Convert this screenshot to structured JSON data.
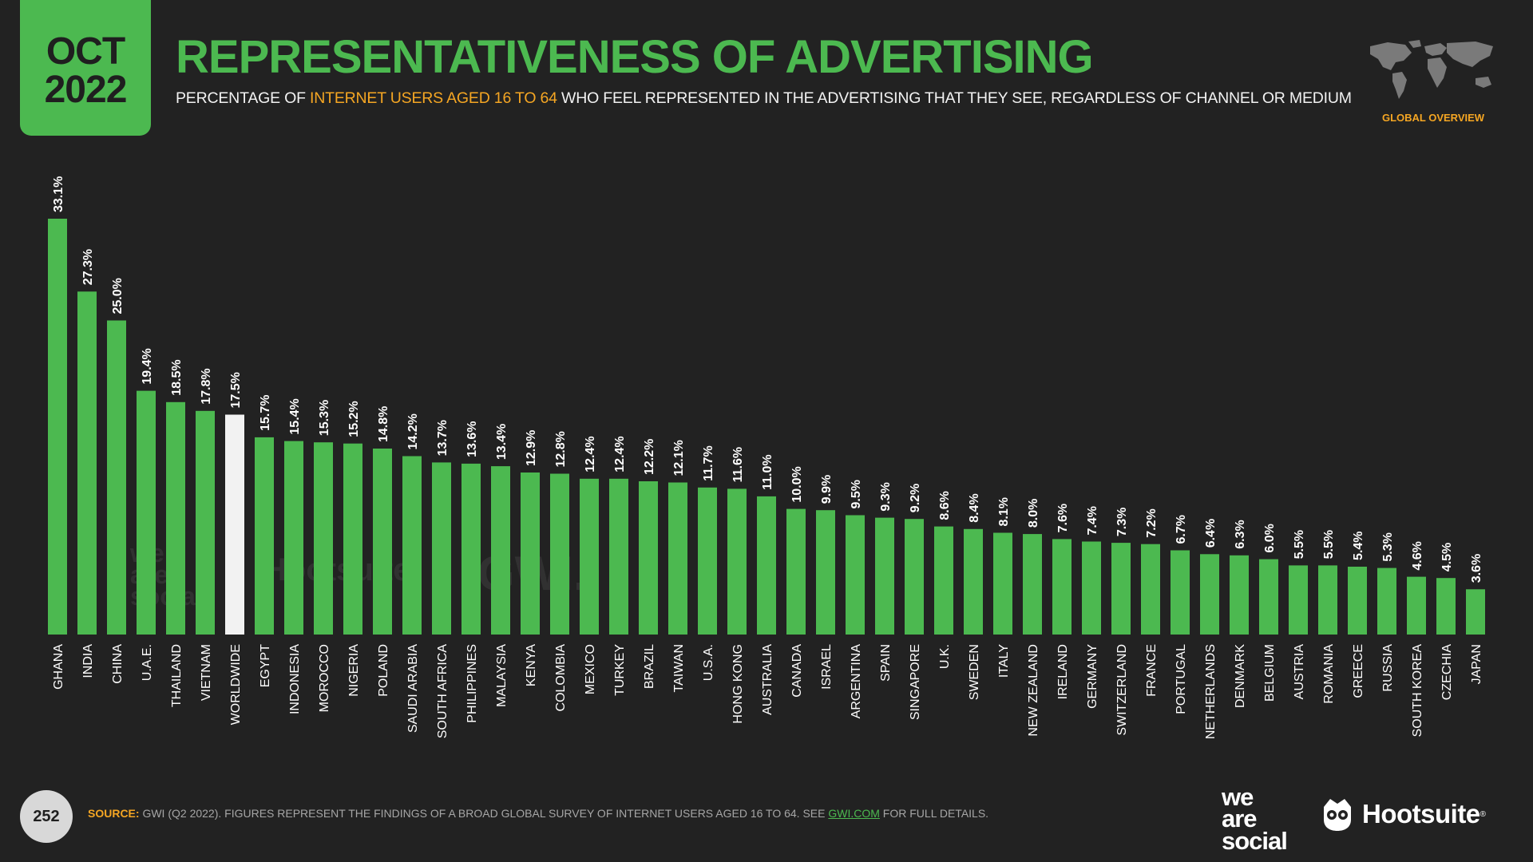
{
  "header": {
    "date_month": "OCT",
    "date_year": "2022",
    "title": "REPRESENTATIVENESS OF ADVERTISING",
    "subtitle_pre": "PERCENTAGE OF ",
    "subtitle_highlight": "INTERNET USERS AGED 16 TO 64",
    "subtitle_post": " WHO FEEL REPRESENTED IN THE ADVERTISING THAT THEY SEE, REGARDLESS OF CHANNEL OR MEDIUM",
    "region_label": "GLOBAL OVERVIEW"
  },
  "colors": {
    "accent": "#4cb950",
    "highlight": "#f5a623",
    "background": "#222222",
    "bar": "#4cb950",
    "bar_highlight": "#f2f2f2"
  },
  "chart_data": {
    "type": "bar",
    "categories": [
      "GHANA",
      "INDIA",
      "CHINA",
      "U.A.E.",
      "THAILAND",
      "VIETNAM",
      "WORLDWIDE",
      "EGYPT",
      "INDONESIA",
      "MOROCCO",
      "NIGERIA",
      "POLAND",
      "SAUDI ARABIA",
      "SOUTH AFRICA",
      "PHILIPPINES",
      "MALAYSIA",
      "KENYA",
      "COLOMBIA",
      "MEXICO",
      "TURKEY",
      "BRAZIL",
      "TAIWAN",
      "U.S.A.",
      "HONG KONG",
      "AUSTRALIA",
      "CANADA",
      "ISRAEL",
      "ARGENTINA",
      "SPAIN",
      "SINGAPORE",
      "U.K.",
      "SWEDEN",
      "ITALY",
      "NEW ZEALAND",
      "IRELAND",
      "GERMANY",
      "SWITZERLAND",
      "FRANCE",
      "PORTUGAL",
      "NETHERLANDS",
      "DENMARK",
      "BELGIUM",
      "AUSTRIA",
      "ROMANIA",
      "GREECE",
      "RUSSIA",
      "SOUTH KOREA",
      "CZECHIA",
      "JAPAN"
    ],
    "values": [
      33.1,
      27.3,
      25.0,
      19.4,
      18.5,
      17.8,
      17.5,
      15.7,
      15.4,
      15.3,
      15.2,
      14.8,
      14.2,
      13.7,
      13.6,
      13.4,
      12.9,
      12.8,
      12.4,
      12.4,
      12.2,
      12.1,
      11.7,
      11.6,
      11.0,
      10.0,
      9.9,
      9.5,
      9.3,
      9.2,
      8.6,
      8.4,
      8.1,
      8.0,
      7.6,
      7.4,
      7.3,
      7.2,
      6.7,
      6.4,
      6.3,
      6.0,
      5.5,
      5.5,
      5.4,
      5.3,
      4.6,
      4.5,
      3.6
    ],
    "value_labels": [
      "33.1%",
      "27.3%",
      "25.0%",
      "19.4%",
      "18.5%",
      "17.8%",
      "17.5%",
      "15.7%",
      "15.4%",
      "15.3%",
      "15.2%",
      "14.8%",
      "14.2%",
      "13.7%",
      "13.6%",
      "13.4%",
      "12.9%",
      "12.8%",
      "12.4%",
      "12.4%",
      "12.2%",
      "12.1%",
      "11.7%",
      "11.6%",
      "11.0%",
      "10.0%",
      "9.9%",
      "9.5%",
      "9.3%",
      "9.2%",
      "8.6%",
      "8.4%",
      "8.1%",
      "8.0%",
      "7.6%",
      "7.4%",
      "7.3%",
      "7.2%",
      "6.7%",
      "6.4%",
      "6.3%",
      "6.0%",
      "5.5%",
      "5.5%",
      "5.4%",
      "5.3%",
      "4.6%",
      "4.5%",
      "3.6%"
    ],
    "highlight_category": "WORLDWIDE",
    "ylim": [
      0,
      33.1
    ],
    "grid": false,
    "xlabel": "",
    "ylabel": ""
  },
  "watermarks": {
    "was_line1": "we",
    "was_line2": "are",
    "was_line3": "social",
    "hootsuite": "Hootsuite",
    "gwi": "GWI."
  },
  "footer": {
    "page_number": "252",
    "source_label": "SOURCE:",
    "source_text": " GWI (Q2 2022). FIGURES REPRESENT THE FINDINGS OF A BROAD GLOBAL SURVEY OF INTERNET USERS AGED 16 TO 64. SEE ",
    "source_link": "GWI.COM",
    "source_tail": " FOR FULL DETAILS.",
    "logo_was_line1": "we",
    "logo_was_line2": "are",
    "logo_was_line3": "social",
    "logo_hootsuite": "Hootsuite",
    "logo_hootsuite_reg": "®"
  }
}
